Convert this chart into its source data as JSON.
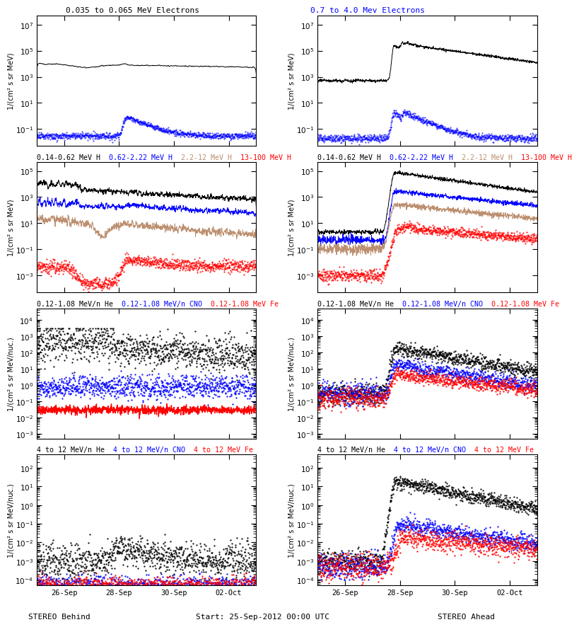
{
  "title_left_row1": "0.035 to 0.065 MeV Electrons",
  "title_right_row1": "0.7 to 4.0 Mev Electrons",
  "title_left_row2_parts": [
    {
      "text": "0.14-0.62 MeV H",
      "color": "black"
    },
    {
      "text": "  0.62-2.22 MeV H",
      "color": "blue"
    },
    {
      "text": "  2.2-12 MeV H",
      "color": "#bc8f6f"
    },
    {
      "text": "  13-100 MeV H",
      "color": "red"
    }
  ],
  "title_right_row2_parts": [
    {
      "text": "0.14-0.62 MeV H",
      "color": "black"
    },
    {
      "text": "  0.62-2.22 MeV H",
      "color": "blue"
    },
    {
      "text": "  2.2-12 MeV H",
      "color": "#bc8f6f"
    },
    {
      "text": "  13-100 MeV H",
      "color": "red"
    }
  ],
  "title_left_row3_parts": [
    {
      "text": "0.12-1.08 MeV/n He",
      "color": "black"
    },
    {
      "text": "  0.12-1.08 MeV/n CNO",
      "color": "blue"
    },
    {
      "text": "  0.12-1.08 MeV Fe",
      "color": "red"
    }
  ],
  "title_right_row3_parts": [
    {
      "text": "0.12-1.08 MeV/n He",
      "color": "black"
    },
    {
      "text": "  0.12-1.08 MeV/n CNO",
      "color": "blue"
    },
    {
      "text": "  0.12-1.08 MeV Fe",
      "color": "red"
    }
  ],
  "title_left_row4_parts": [
    {
      "text": "4 to 12 MeV/n He",
      "color": "black"
    },
    {
      "text": "  4 to 12 MeV/n CNO",
      "color": "blue"
    },
    {
      "text": "  4 to 12 MeV Fe",
      "color": "red"
    }
  ],
  "title_right_row4_parts": [
    {
      "text": "4 to 12 MeV/n He",
      "color": "black"
    },
    {
      "text": "  4 to 12 MeV/n CNO",
      "color": "blue"
    },
    {
      "text": "  4 to 12 MeV Fe",
      "color": "red"
    }
  ],
  "xlabel_bottom": "Start: 25-Sep-2012 00:00 UTC",
  "xlabel_left": "STEREO Behind",
  "xlabel_right": "STEREO Ahead",
  "xtick_labels": [
    "26-Sep",
    "28-Sep",
    "30-Sep",
    "02-Oct"
  ],
  "ylabel_electrons": "1/(cm² s sr MeV)",
  "ylabel_H": "1/(cm² s sr MeV)",
  "ylabel_He": "1/(cm² s sr MeV/nuc.)",
  "ylabel_Fe": "1/(cm² s sr MeV/nuc.)"
}
